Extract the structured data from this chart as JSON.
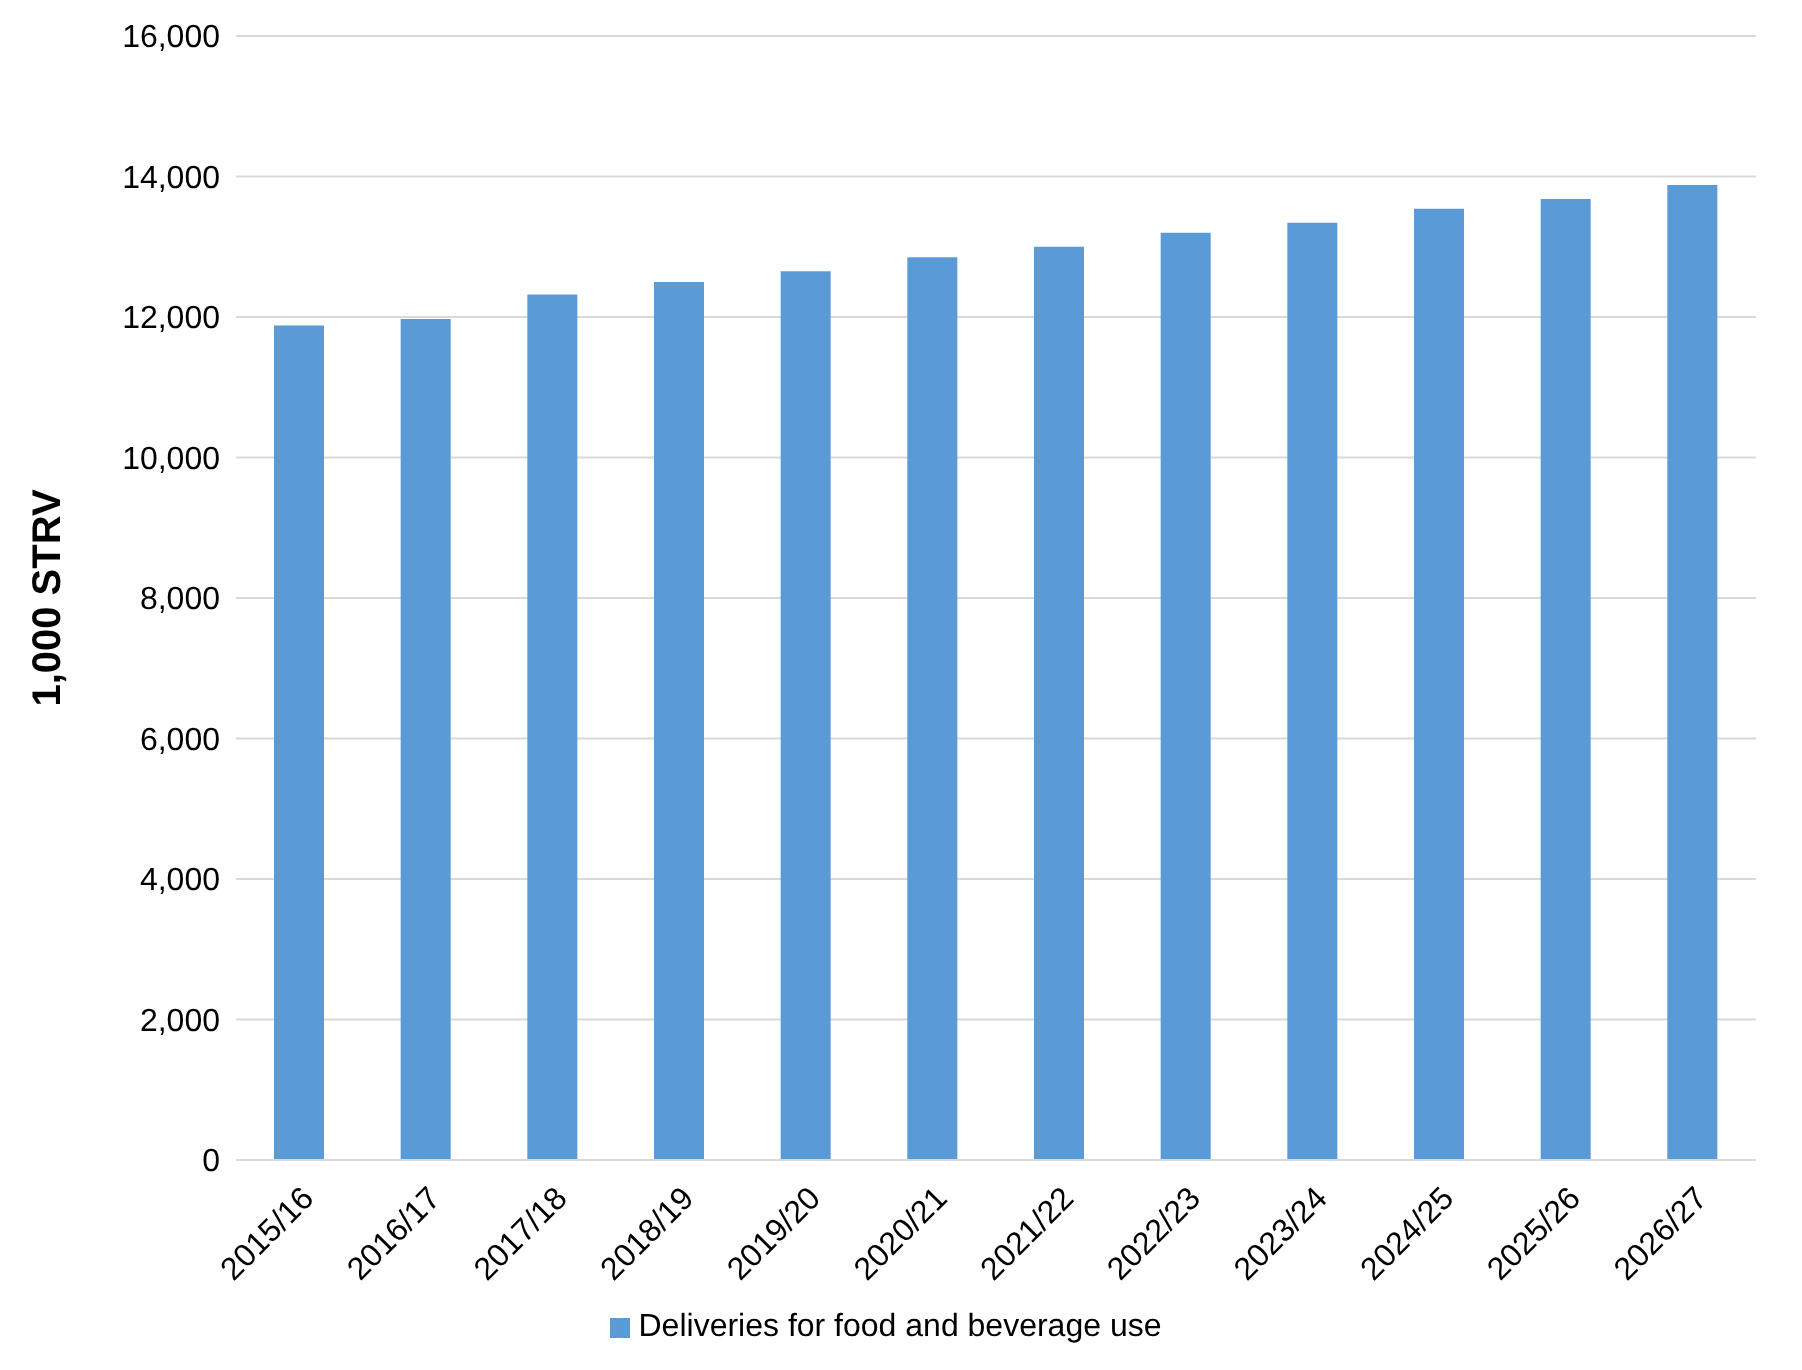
{
  "chart_data": {
    "type": "bar",
    "ylabel": "1,000 STRV",
    "categories": [
      "2015/16",
      "2016/17",
      "2017/18",
      "2018/19",
      "2019/20",
      "2020/21",
      "2021/22",
      "2022/23",
      "2023/24",
      "2024/25",
      "2025/26",
      "2026/27"
    ],
    "series": [
      {
        "name": "Deliveries for food and beverage use",
        "color": "#5b9bd5",
        "values": [
          11880,
          11970,
          12320,
          12500,
          12650,
          12850,
          13000,
          13200,
          13340,
          13540,
          13680,
          13880
        ]
      }
    ],
    "ylim": [
      0,
      16000
    ],
    "yticks": [
      {
        "value": 0,
        "label": "0"
      },
      {
        "value": 2000,
        "label": "2,000"
      },
      {
        "value": 4000,
        "label": "4,000"
      },
      {
        "value": 6000,
        "label": "6,000"
      },
      {
        "value": 8000,
        "label": "8,000"
      },
      {
        "value": 10000,
        "label": "10,000"
      },
      {
        "value": 12000,
        "label": "12,000"
      },
      {
        "value": 14000,
        "label": "14,000"
      },
      {
        "value": 16000,
        "label": "16,000"
      }
    ],
    "grid": "y",
    "legend": "bottom"
  }
}
